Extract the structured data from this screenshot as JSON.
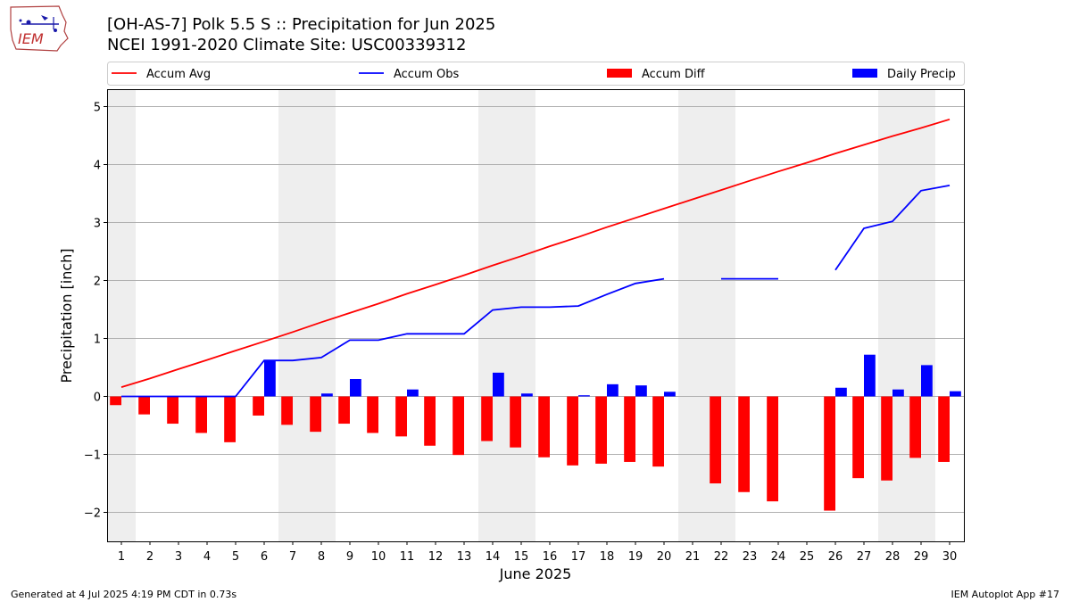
{
  "logo": {
    "text": "IEM"
  },
  "title_line1": "[OH-AS-7] Polk 5.5 S :: Precipitation for Jun 2025",
  "title_line2": "NCEI 1991-2020 Climate Site: USC00339312",
  "footer": {
    "left": "Generated at 4 Jul 2025 4:19 PM CDT in 0.73s",
    "right": "IEM Autoplot App #17"
  },
  "chart_data": {
    "type": "bar",
    "xlabel": "June 2025",
    "ylabel": "Precipitation [inch]",
    "ylim": [
      -2.5,
      5.3
    ],
    "xlim": [
      0.5,
      30.5
    ],
    "yticks": [
      -2,
      -1,
      0,
      1,
      2,
      3,
      4,
      5
    ],
    "ytick_labels": [
      "−2",
      "−1",
      "0",
      "1",
      "2",
      "3",
      "4",
      "5"
    ],
    "x": [
      1,
      2,
      3,
      4,
      5,
      6,
      7,
      8,
      9,
      10,
      11,
      12,
      13,
      14,
      15,
      16,
      17,
      18,
      19,
      20,
      21,
      22,
      23,
      24,
      25,
      26,
      27,
      28,
      29,
      30
    ],
    "grid": "horizontal",
    "weekend_shading": [
      [
        0.5,
        1.5
      ],
      [
        6.5,
        8.5
      ],
      [
        13.5,
        15.5
      ],
      [
        20.5,
        22.5
      ],
      [
        27.5,
        29.5
      ]
    ],
    "legend_position": "top, above plot",
    "colors": {
      "accum_avg": "#ff0000",
      "accum_obs": "#0000ff",
      "accum_diff": "#ff0000",
      "daily_precip": "#0000ff",
      "weekend": "#eeeeee",
      "grid": "#b0b0b0"
    },
    "series": [
      {
        "name": "Accum Avg",
        "kind": "line",
        "color": "#ff0000",
        "values": [
          0.16,
          0.31,
          0.47,
          0.63,
          0.79,
          0.95,
          1.11,
          1.28,
          1.44,
          1.6,
          1.77,
          1.93,
          2.09,
          2.26,
          2.42,
          2.59,
          2.75,
          2.92,
          3.08,
          3.24,
          3.4,
          3.56,
          3.72,
          3.88,
          4.03,
          4.19,
          4.34,
          4.49,
          4.63,
          4.78
        ]
      },
      {
        "name": "Accum Obs",
        "kind": "line",
        "color": "#0000ff",
        "values": [
          0.0,
          0.0,
          0.0,
          0.0,
          0.0,
          0.62,
          0.62,
          0.67,
          0.97,
          0.97,
          1.08,
          1.08,
          1.08,
          1.49,
          1.54,
          1.54,
          1.56,
          1.76,
          1.95,
          2.03,
          null,
          2.03,
          2.03,
          2.03,
          null,
          2.18,
          2.9,
          3.02,
          3.55,
          3.64
        ]
      },
      {
        "name": "Accum Diff",
        "kind": "bar",
        "color": "#ff0000",
        "values": [
          -0.15,
          -0.31,
          -0.47,
          -0.63,
          -0.79,
          -0.33,
          -0.49,
          -0.61,
          -0.47,
          -0.63,
          -0.69,
          -0.85,
          -1.01,
          -0.77,
          -0.88,
          -1.05,
          -1.19,
          -1.16,
          -1.13,
          -1.21,
          null,
          -1.5,
          -1.65,
          -1.81,
          null,
          -1.97,
          -1.41,
          -1.45,
          -1.06,
          -1.13
        ]
      },
      {
        "name": "Daily Precip",
        "kind": "bar",
        "color": "#0000ff",
        "values": [
          0.0,
          0.0,
          0.0,
          0.0,
          0.0,
          0.62,
          0.0,
          0.05,
          0.3,
          0.0,
          0.12,
          0.0,
          0.0,
          0.41,
          0.05,
          0.0,
          0.02,
          0.21,
          0.19,
          0.08,
          null,
          0.0,
          0.0,
          0.0,
          null,
          0.15,
          0.72,
          0.12,
          0.54,
          0.09
        ]
      }
    ]
  }
}
